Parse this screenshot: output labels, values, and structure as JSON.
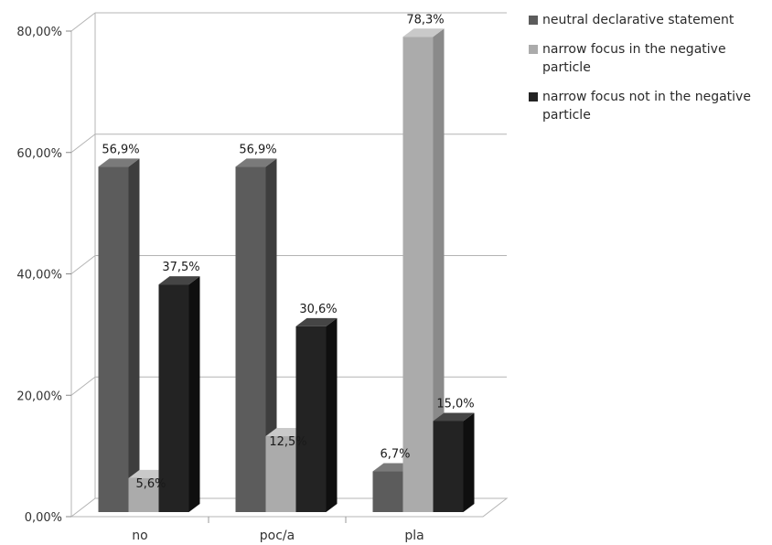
{
  "chart_data": {
    "type": "bar",
    "categories": [
      "no",
      "poc/a",
      "pla"
    ],
    "series": [
      {
        "name": "neutral declarative statement",
        "values": [
          56.9,
          56.9,
          6.7
        ],
        "labels": [
          "56,9%",
          "56,9%",
          "6,7%"
        ]
      },
      {
        "name": "narrow focus in the negative particle",
        "values": [
          5.6,
          12.5,
          78.3
        ],
        "labels": [
          "5,6%",
          "12,5%",
          "78,3%"
        ]
      },
      {
        "name": "narrow focus not in the negative particle",
        "values": [
          37.5,
          30.6,
          15.0
        ],
        "labels": [
          "37,5%",
          "30,6%",
          "15,0%"
        ]
      }
    ],
    "y_ticks": [
      0,
      20,
      40,
      60,
      80
    ],
    "y_tick_labels": [
      "0,00%",
      "20,00%",
      "40,00%",
      "60,00%",
      "80,00%"
    ],
    "ylim": [
      0,
      80
    ],
    "grid": true,
    "legend_position": "right",
    "style": "3d-clustered-column",
    "colors": {
      "series_front": [
        "#5c5c5c",
        "#ababab",
        "#232323"
      ],
      "series_side": [
        "#3e3e3e",
        "#8a8a8a",
        "#0f0f0f"
      ],
      "series_top": [
        "#7a7a7a",
        "#c9c9c9",
        "#454545"
      ],
      "grid": "#b4b4b4",
      "axis_text": "#333333"
    }
  }
}
